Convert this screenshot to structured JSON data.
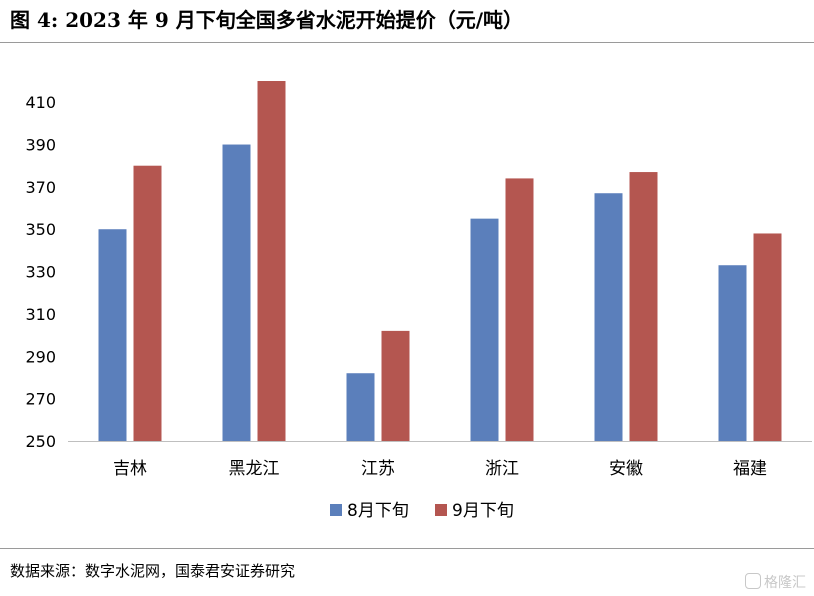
{
  "title": "图 4:  2023 年 9 月下旬全国多省水泥开始提价（元/吨）",
  "source": "数据来源：数字水泥网，国泰君安证券研究",
  "watermark": "格隆汇",
  "chart_data": {
    "type": "bar",
    "categories": [
      "吉林",
      "黑龙江",
      "江苏",
      "浙江",
      "安徽",
      "福建"
    ],
    "series": [
      {
        "name": "8月下旬",
        "color": "#5b7fbb",
        "values": [
          350,
          390,
          282,
          355,
          367,
          333
        ]
      },
      {
        "name": "9月下旬",
        "color": "#b45650",
        "values": [
          380,
          420,
          302,
          374,
          377,
          348
        ]
      }
    ],
    "ylim": [
      250,
      420
    ],
    "yticks": [
      250,
      270,
      290,
      310,
      330,
      350,
      370,
      390,
      410
    ],
    "xlabel": "",
    "ylabel": "",
    "grid": false,
    "legend": "bottom"
  }
}
